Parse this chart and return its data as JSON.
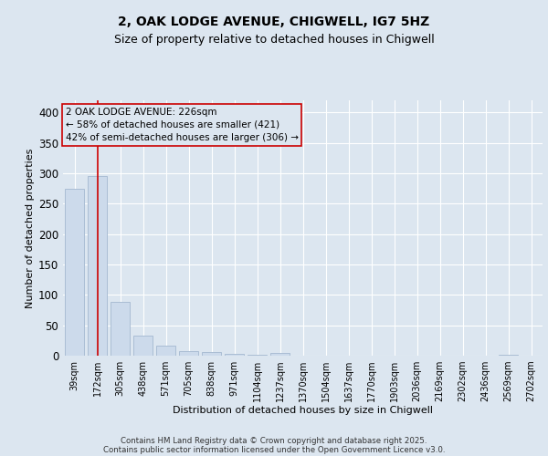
{
  "title1": "2, OAK LODGE AVENUE, CHIGWELL, IG7 5HZ",
  "title2": "Size of property relative to detached houses in Chigwell",
  "xlabel": "Distribution of detached houses by size in Chigwell",
  "ylabel": "Number of detached properties",
  "bar_labels": [
    "39sqm",
    "172sqm",
    "305sqm",
    "438sqm",
    "571sqm",
    "705sqm",
    "838sqm",
    "971sqm",
    "1104sqm",
    "1237sqm",
    "1370sqm",
    "1504sqm",
    "1637sqm",
    "1770sqm",
    "1903sqm",
    "2036sqm",
    "2169sqm",
    "2302sqm",
    "2436sqm",
    "2569sqm",
    "2702sqm"
  ],
  "bar_values": [
    275,
    295,
    89,
    33,
    16,
    8,
    6,
    3,
    2,
    5,
    0,
    0,
    0,
    0,
    0,
    0,
    0,
    0,
    0,
    2,
    0
  ],
  "bar_color": "#ccdaeb",
  "bar_edge_color": "#aabdd4",
  "vline_x_idx": 1,
  "vline_color": "#cc0000",
  "annotation_line1": "2 OAK LODGE AVENUE: 226sqm",
  "annotation_line2": "← 58% of detached houses are smaller (421)",
  "annotation_line3": "42% of semi-detached houses are larger (306) →",
  "annotation_box_color": "#cc0000",
  "ylim": [
    0,
    420
  ],
  "yticks": [
    0,
    50,
    100,
    150,
    200,
    250,
    300,
    350,
    400
  ],
  "bg_color": "#dce6f0",
  "plot_bg_color": "#dce6f0",
  "footer_line1": "Contains HM Land Registry data © Crown copyright and database right 2025.",
  "footer_line2": "Contains public sector information licensed under the Open Government Licence v3.0.",
  "title1_fontsize": 10,
  "title2_fontsize": 9,
  "xlabel_fontsize": 8,
  "ylabel_fontsize": 8,
  "grid_color": "#ffffff",
  "annotation_fontsize": 7.5,
  "tick_fontsize": 7
}
